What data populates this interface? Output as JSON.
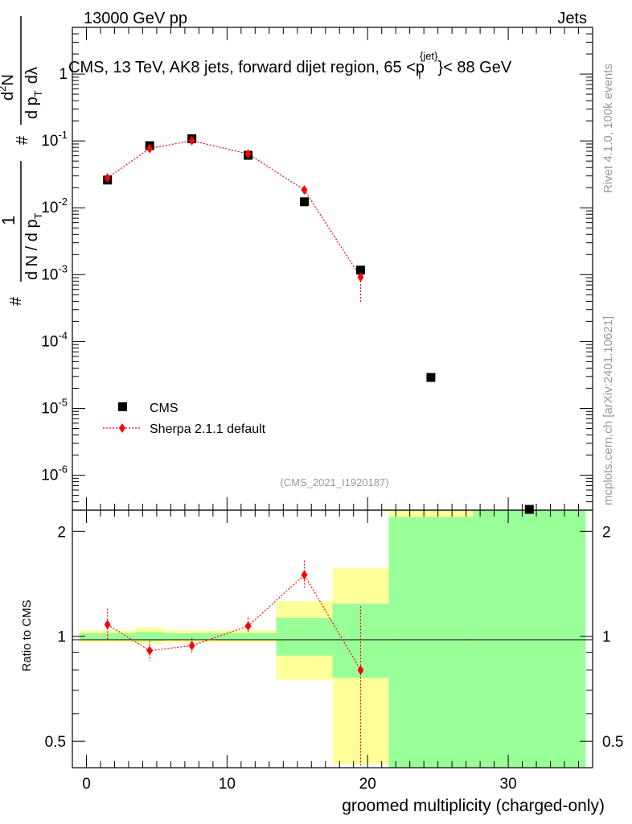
{
  "header": {
    "left": "13000 GeV pp",
    "right": "Jets"
  },
  "title_parts": {
    "main": "CMS, 13 TeV, AK8 jets, forward dijet region, 65 <p",
    "sub": "T",
    "sup": "{jet}",
    "end": "}< 88 GeV"
  },
  "side_labels": {
    "rivet": "Rivet 4.1.0,  100k events",
    "mcplots": "mcplots.cern.ch [arXiv:2401.10621]"
  },
  "analysis_id": "(CMS_2021_I1920187)",
  "ylabel_parts": {
    "hash1": "#",
    "one": "1",
    "dN": "d N / d p",
    "T1": "T",
    "hash2": "#",
    "d2N": "d",
    "two": "2",
    "N": "N",
    "dpT": "d p",
    "T2": "T",
    "dlambda": "dλ"
  },
  "colors": {
    "cms": "#000000",
    "sherpa": "#ff0000",
    "band_yellow": "#ffff99",
    "band_green": "#99ff99"
  },
  "chart_data": [
    {
      "type": "scatter",
      "panel": "main",
      "xlim": [
        -1,
        36
      ],
      "ylim": [
        3e-07,
        5
      ],
      "yscale": "log",
      "ylabel": "1/(dN/dp_T) d^2N/(dp_T dλ)",
      "ytick_labels": [
        {
          "base": "10",
          "exp": "-6",
          "value": 1e-06
        },
        {
          "base": "10",
          "exp": "-5",
          "value": 1e-05
        },
        {
          "base": "10",
          "exp": "-4",
          "value": 0.0001
        },
        {
          "base": "10",
          "exp": "-3",
          "value": 0.001
        },
        {
          "base": "10",
          "exp": "-2",
          "value": 0.01
        },
        {
          "base": "10",
          "exp": "-1",
          "value": 0.1
        },
        {
          "base": "1",
          "exp": "",
          "value": 1
        }
      ],
      "legend": [
        "CMS",
        "Sherpa 2.1.1 default"
      ],
      "series": [
        {
          "name": "CMS",
          "x": [
            1.5,
            4.5,
            7.5,
            11.5,
            15.5,
            19.5,
            24.5,
            31.5
          ],
          "y": [
            0.026,
            0.085,
            0.108,
            0.061,
            0.0123,
            0.00117,
            2.9e-05,
            2.5e-07
          ]
        },
        {
          "name": "Sherpa 2.1.1 default",
          "x": [
            1.5,
            4.5,
            7.5,
            11.5,
            15.5,
            19.5
          ],
          "y": [
            0.028,
            0.077,
            0.101,
            0.064,
            0.0185,
            0.00092
          ],
          "yerr_low": [
            0.0015,
            0.0025,
            0.003,
            0.003,
            0.0015,
            0.00054
          ],
          "yerr_high": [
            0.0015,
            0.0025,
            0.003,
            0.003,
            0.0015,
            0.00034
          ]
        }
      ]
    },
    {
      "type": "scatter",
      "panel": "ratio",
      "xlabel": "groomed multiplicity (charged-only)",
      "ylabel": "Ratio to CMS",
      "xlim": [
        -1,
        36
      ],
      "ylim": [
        0.42,
        2.3
      ],
      "x_tick_labels": [
        "0",
        "10",
        "20",
        "30"
      ],
      "y_tick_labels": [
        "0.5",
        "1",
        "2"
      ],
      "bands": [
        {
          "x0": -0.5,
          "x1": 3.5,
          "y_lo": 0.96,
          "y_hi": 1.04,
          "g_lo": 0.98,
          "g_hi": 1.02
        },
        {
          "x0": 3.5,
          "x1": 5.5,
          "y_lo": 0.95,
          "y_hi": 1.06,
          "g_lo": 0.97,
          "g_hi": 1.03
        },
        {
          "x0": 5.5,
          "x1": 9.5,
          "y_lo": 0.96,
          "y_hi": 1.04,
          "g_lo": 0.98,
          "g_hi": 1.02
        },
        {
          "x0": 9.5,
          "x1": 13.5,
          "y_lo": 0.96,
          "y_hi": 1.04,
          "g_lo": 0.98,
          "g_hi": 1.02
        },
        {
          "x0": 13.5,
          "x1": 17.5,
          "y_lo": 0.75,
          "y_hi": 1.26,
          "g_lo": 0.88,
          "g_hi": 1.13
        },
        {
          "x0": 17.5,
          "x1": 21.5,
          "y_lo": 0.43,
          "y_hi": 1.57,
          "g_lo": 0.76,
          "g_hi": 1.24
        },
        {
          "x0": 21.5,
          "x1": 27.5,
          "y_lo": 0.3,
          "y_hi": 2.3,
          "g_lo": 0.3,
          "g_hi": 2.2
        },
        {
          "x0": 27.5,
          "x1": 35.5,
          "y_lo": 0.3,
          "y_hi": 2.3,
          "g_lo": 0.3,
          "g_hi": 2.3
        }
      ],
      "series": [
        {
          "name": "Sherpa 2.1.1 default",
          "x": [
            1.5,
            4.5,
            7.5,
            11.5,
            15.5,
            19.5
          ],
          "y": [
            1.08,
            0.91,
            0.94,
            1.07,
            1.5,
            0.8
          ],
          "yerr_low": [
            0.11,
            0.06,
            0.05,
            0.05,
            0.12,
            0.4
          ],
          "yerr_high": [
            0.12,
            0.06,
            0.05,
            0.06,
            0.15,
            0.42
          ]
        }
      ]
    }
  ]
}
